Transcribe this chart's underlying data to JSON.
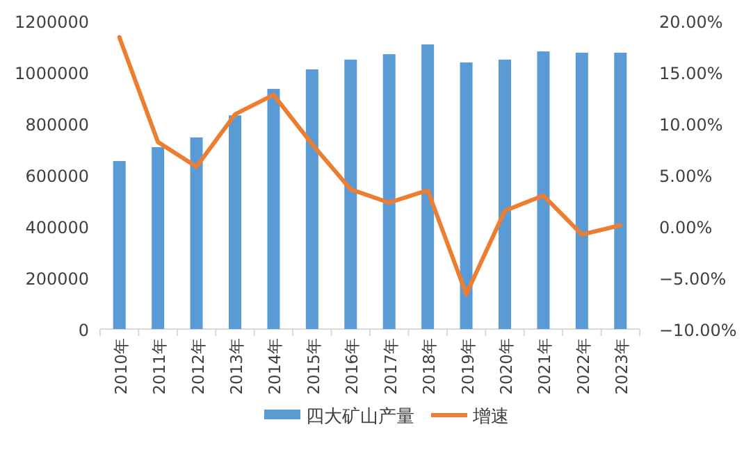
{
  "chart_data": {
    "type": "bar",
    "categories": [
      "2010年",
      "2011年",
      "2012年",
      "2013年",
      "2014年",
      "2015年",
      "2016年",
      "2017年",
      "2018年",
      "2019年",
      "2020年",
      "2021年",
      "2022年",
      "2023年"
    ],
    "series": [
      {
        "name": "四大矿山产量",
        "color": "#5b9bd5",
        "values": [
          654000,
          708000,
          746000,
          832000,
          935000,
          1011000,
          1049000,
          1070000,
          1108000,
          1038000,
          1049000,
          1081000,
          1076000,
          1076000
        ]
      },
      {
        "name": "增速",
        "type": "line",
        "axis": "y2",
        "color": "#ed7d31",
        "values": [
          18.4,
          8.2,
          5.8,
          10.9,
          12.8,
          8.0,
          3.6,
          2.3,
          3.5,
          -6.6,
          1.5,
          3.0,
          -0.8,
          0.1
        ]
      }
    ],
    "ylim": [
      0,
      1200000
    ],
    "yticks": [
      0,
      200000,
      400000,
      600000,
      800000,
      1000000,
      1200000
    ],
    "y2lim": [
      -10,
      20
    ],
    "y2ticks": [
      {
        "value": -10,
        "label": "−10.00%"
      },
      {
        "value": -5,
        "label": "−5.00%"
      },
      {
        "value": 0,
        "label": "0.00%"
      },
      {
        "value": 5,
        "label": "5.00%"
      },
      {
        "value": 10,
        "label": "10.00%"
      },
      {
        "value": 15,
        "label": "15.00%"
      },
      {
        "value": 20,
        "label": "20.00%"
      }
    ],
    "legend": "bottom",
    "grid": false,
    "marker": "none"
  }
}
